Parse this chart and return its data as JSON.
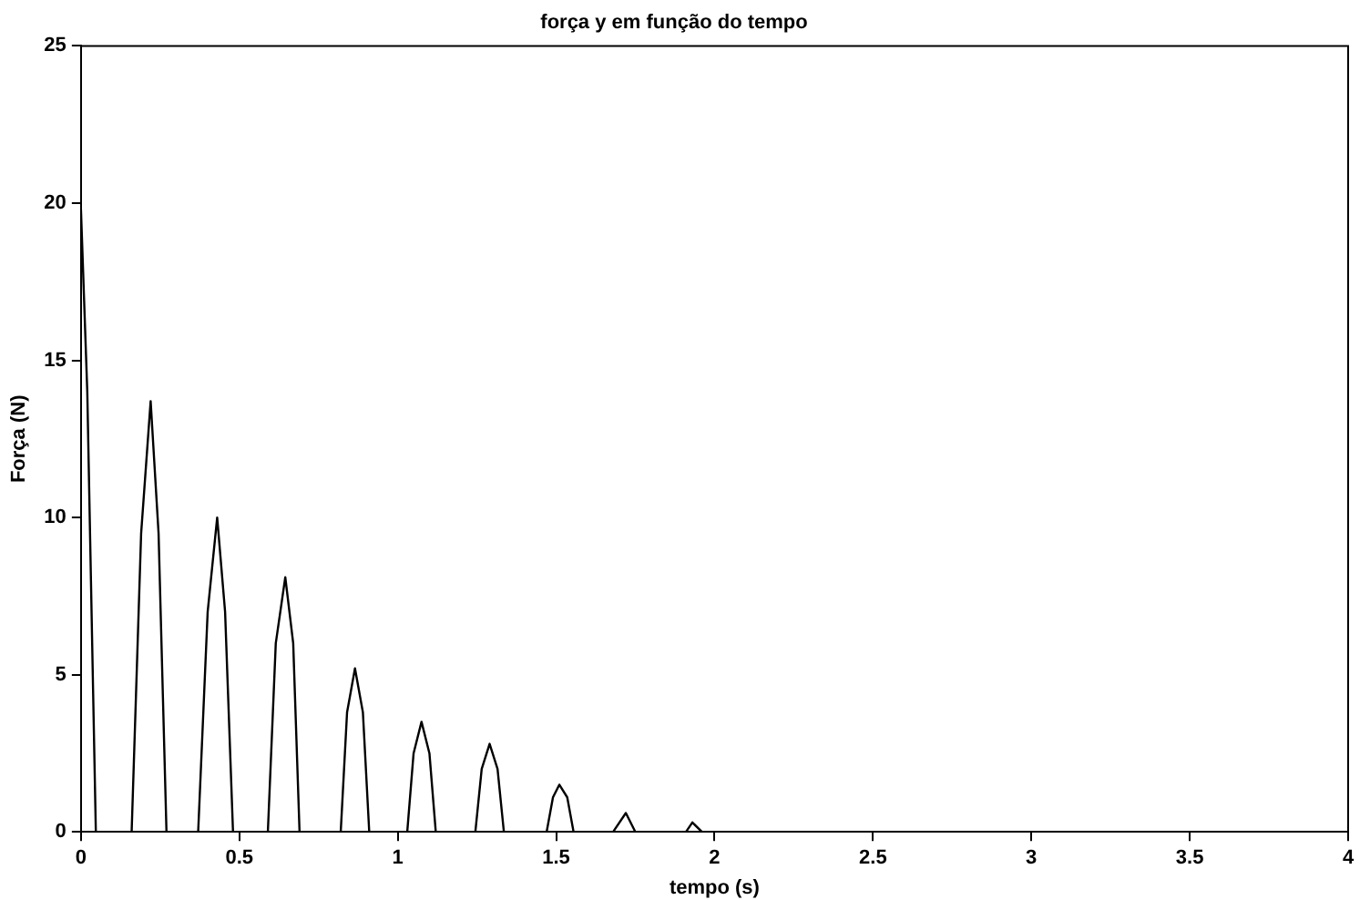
{
  "chart_data": {
    "type": "line",
    "title": "força y em função do tempo",
    "xlabel": "tempo (s)",
    "ylabel": "Força (N)",
    "x": [
      0,
      0.02,
      0.047,
      0.16,
      0.19,
      0.22,
      0.245,
      0.27,
      0.37,
      0.4,
      0.43,
      0.455,
      0.48,
      0.59,
      0.615,
      0.645,
      0.67,
      0.69,
      0.82,
      0.84,
      0.865,
      0.89,
      0.91,
      1.03,
      1.05,
      1.075,
      1.1,
      1.12,
      1.245,
      1.265,
      1.29,
      1.315,
      1.335,
      1.47,
      1.49,
      1.51,
      1.535,
      1.555,
      1.68,
      1.72,
      1.75,
      1.91,
      1.93,
      1.96,
      4
    ],
    "series": [
      {
        "color": "#000000",
        "values": [
          19.8,
          14,
          0,
          0,
          9.5,
          13.7,
          9.5,
          0,
          0,
          7,
          10,
          7,
          0,
          0,
          6,
          8.1,
          6,
          0,
          0,
          3.8,
          5.2,
          3.8,
          0,
          0,
          2.5,
          3.5,
          2.5,
          0,
          0,
          2,
          2.8,
          2,
          0,
          0,
          1.1,
          1.5,
          1.1,
          0,
          0,
          0.6,
          0,
          0,
          0.3,
          0,
          0
        ]
      }
    ],
    "xlim": [
      0,
      4
    ],
    "xticks": [
      0,
      0.5,
      1,
      1.5,
      2,
      2.5,
      3,
      3.5,
      4
    ],
    "ylim": [
      0,
      25
    ],
    "yticks": [
      0,
      5,
      10,
      15,
      20,
      25
    ],
    "grid": false,
    "legend": false,
    "marker": "none",
    "line_style": "solid"
  }
}
